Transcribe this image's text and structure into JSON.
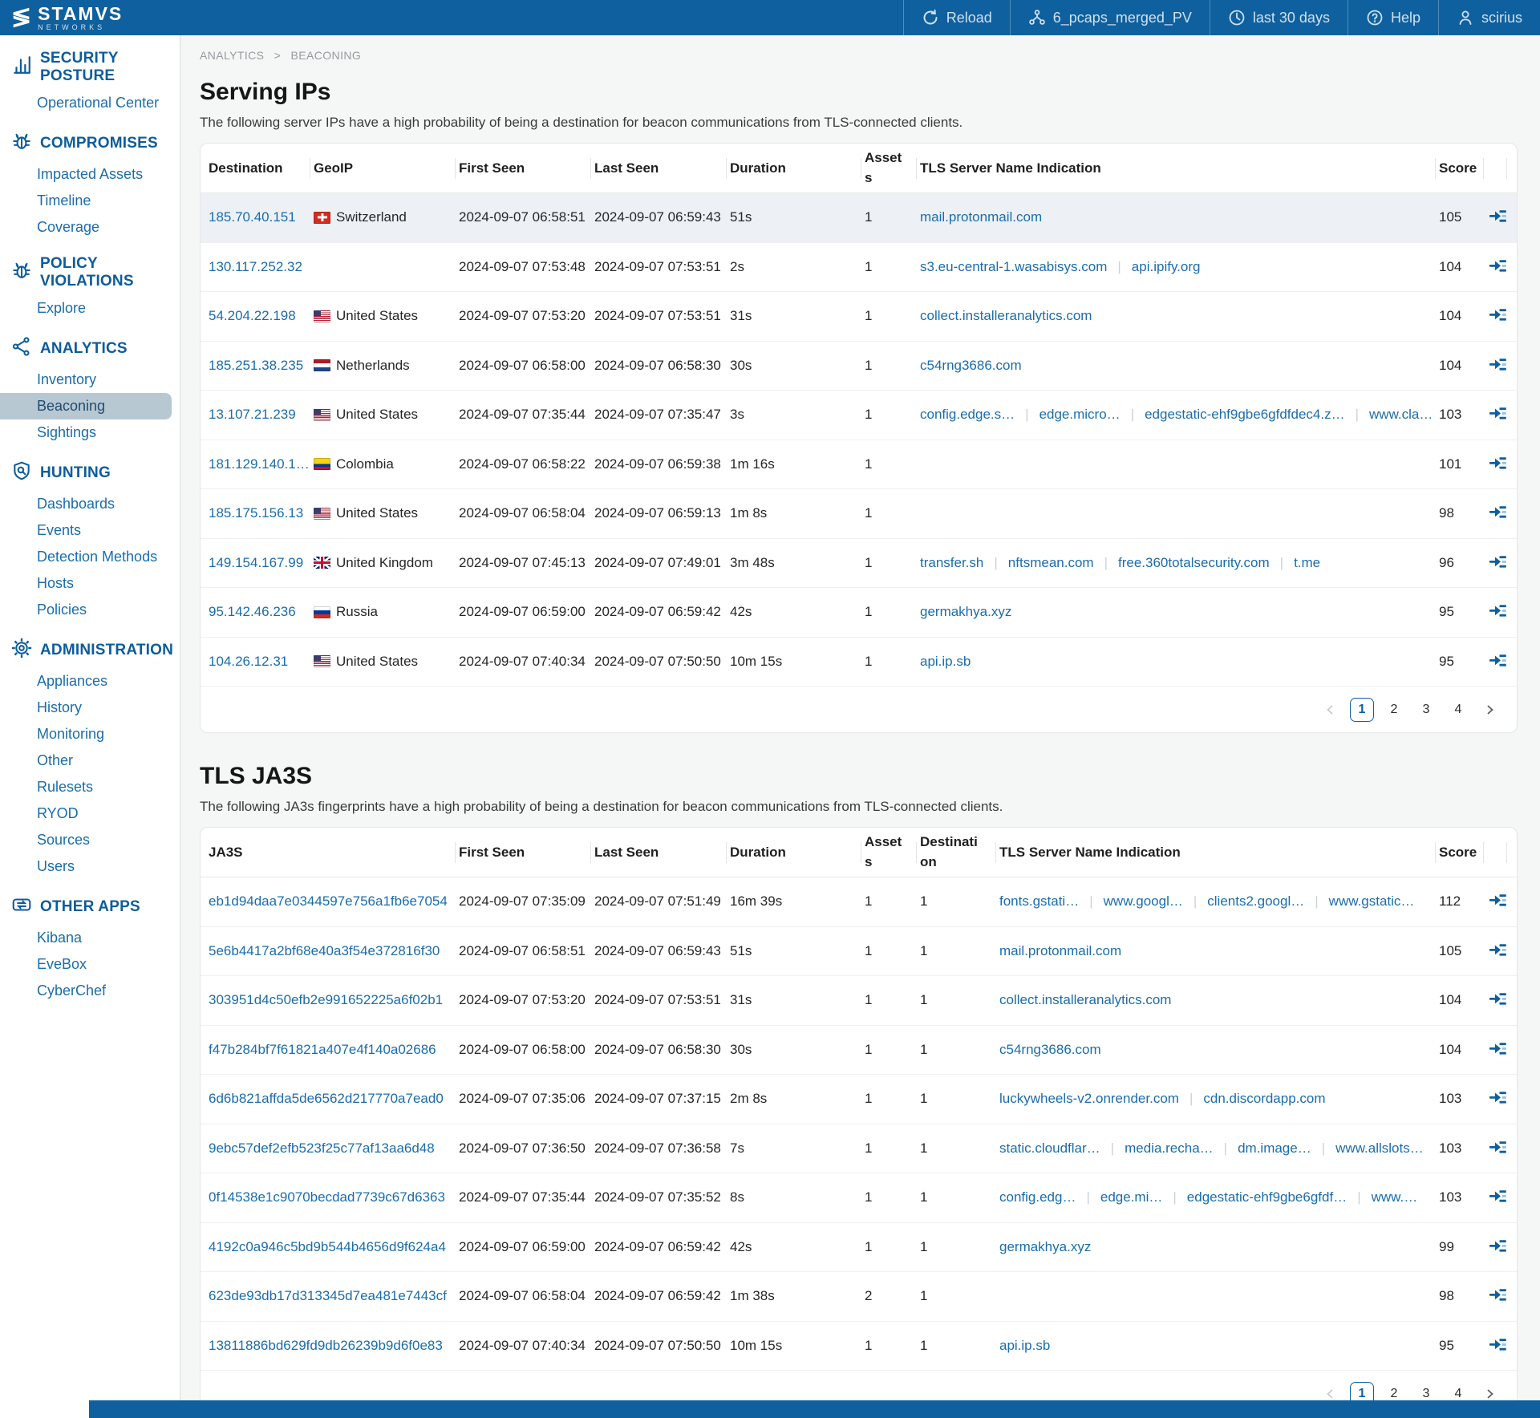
{
  "header": {
    "logo_title": "STAMVS",
    "logo_subtitle": "NETWORKS",
    "reload_label": "Reload",
    "tenant_label": "6_pcaps_merged_PV",
    "time_range_label": "last 30 days",
    "help_label": "Help",
    "user_label": "scirius"
  },
  "breadcrumb": {
    "items": [
      "ANALYTICS",
      "BEACONING"
    ],
    "separator": ">"
  },
  "sidebar": {
    "sections": [
      {
        "label": "SECURITY POSTURE",
        "icon": "bar-chart-icon",
        "items": [
          "Operational Center"
        ]
      },
      {
        "label": "COMPROMISES",
        "icon": "bug-icon",
        "items": [
          "Impacted Assets",
          "Timeline",
          "Coverage"
        ]
      },
      {
        "label": "POLICY VIOLATIONS",
        "icon": "bug-icon",
        "items": [
          "Explore"
        ]
      },
      {
        "label": "ANALYTICS",
        "icon": "share-icon",
        "items": [
          "Inventory",
          "Beaconing",
          "Sightings"
        ],
        "active_item": "Beaconing"
      },
      {
        "label": "HUNTING",
        "icon": "shield-search-icon",
        "items": [
          "Dashboards",
          "Events",
          "Detection Methods",
          "Hosts",
          "Policies"
        ]
      },
      {
        "label": "ADMINISTRATION",
        "icon": "gear-icon",
        "items": [
          "Appliances",
          "History",
          "Monitoring",
          "Other",
          "Rulesets",
          "RYOD",
          "Sources",
          "Users"
        ]
      },
      {
        "label": "OTHER APPS",
        "icon": "apps-link-icon",
        "items": [
          "Kibana",
          "EveBox",
          "CyberChef"
        ]
      }
    ]
  },
  "serving_ips": {
    "title": "Serving IPs",
    "subtitle": "The following server IPs have a high probability of being a destination for beacon communications from TLS-connected clients.",
    "columns": [
      "Destination",
      "GeoIP",
      "First Seen",
      "Last Seen",
      "Duration",
      "Assets",
      "TLS Server Name Indication",
      "Score",
      ""
    ],
    "rows": [
      {
        "destination": "185.70.40.151",
        "flag": "ch",
        "country": "Switzerland",
        "first_seen": "2024-09-07 06:58:51",
        "last_seen": "2024-09-07 06:59:43",
        "duration": "51s",
        "assets": "1",
        "sni": [
          "mail.protonmail.com"
        ],
        "score": "105",
        "highlighted": true
      },
      {
        "destination": "130.117.252.32",
        "flag": "",
        "country": "",
        "first_seen": "2024-09-07 07:53:48",
        "last_seen": "2024-09-07 07:53:51",
        "duration": "2s",
        "assets": "1",
        "sni": [
          "s3.eu-central-1.wasabisys.com",
          "api.ipify.org"
        ],
        "score": "104",
        "highlighted": false
      },
      {
        "destination": "54.204.22.198",
        "flag": "us",
        "country": "United States",
        "first_seen": "2024-09-07 07:53:20",
        "last_seen": "2024-09-07 07:53:51",
        "duration": "31s",
        "assets": "1",
        "sni": [
          "collect.installeranalytics.com"
        ],
        "score": "104",
        "highlighted": false
      },
      {
        "destination": "185.251.38.235",
        "flag": "nl",
        "country": "Netherlands",
        "first_seen": "2024-09-07 06:58:00",
        "last_seen": "2024-09-07 06:58:30",
        "duration": "30s",
        "assets": "1",
        "sni": [
          "c54rng3686.com"
        ],
        "score": "104",
        "highlighted": false
      },
      {
        "destination": "13.107.21.239",
        "flag": "us",
        "country": "United States",
        "first_seen": "2024-09-07 07:35:44",
        "last_seen": "2024-09-07 07:35:47",
        "duration": "3s",
        "assets": "1",
        "sni": [
          "config.edge.s…",
          "edge.micro…",
          "edgestatic-ehf9gbe6gfdfdec4.z…",
          "www.cla…"
        ],
        "score": "103",
        "highlighted": false
      },
      {
        "destination": "181.129.140.1…",
        "flag": "co",
        "country": "Colombia",
        "first_seen": "2024-09-07 06:58:22",
        "last_seen": "2024-09-07 06:59:38",
        "duration": "1m 16s",
        "assets": "1",
        "sni": [],
        "score": "101",
        "highlighted": false
      },
      {
        "destination": "185.175.156.13",
        "flag": "us",
        "country": "United States",
        "first_seen": "2024-09-07 06:58:04",
        "last_seen": "2024-09-07 06:59:13",
        "duration": "1m 8s",
        "assets": "1",
        "sni": [],
        "score": "98",
        "highlighted": false
      },
      {
        "destination": "149.154.167.99",
        "flag": "gb",
        "country": "United Kingdom",
        "first_seen": "2024-09-07 07:45:13",
        "last_seen": "2024-09-07 07:49:01",
        "duration": "3m 48s",
        "assets": "1",
        "sni": [
          "transfer.sh",
          "nftsmean.com",
          "free.360totalsecurity.com",
          "t.me"
        ],
        "score": "96",
        "highlighted": false
      },
      {
        "destination": "95.142.46.236",
        "flag": "ru",
        "country": "Russia",
        "first_seen": "2024-09-07 06:59:00",
        "last_seen": "2024-09-07 06:59:42",
        "duration": "42s",
        "assets": "1",
        "sni": [
          "germakhya.xyz"
        ],
        "score": "95",
        "highlighted": false
      },
      {
        "destination": "104.26.12.31",
        "flag": "us",
        "country": "United States",
        "first_seen": "2024-09-07 07:40:34",
        "last_seen": "2024-09-07 07:50:50",
        "duration": "10m 15s",
        "assets": "1",
        "sni": [
          "api.ip.sb"
        ],
        "score": "95",
        "highlighted": false
      }
    ],
    "pagination": {
      "pages": [
        "1",
        "2",
        "3",
        "4"
      ],
      "active": "1"
    }
  },
  "tls_ja3s": {
    "title": "TLS JA3S",
    "subtitle": "The following JA3s fingerprints have a high probability of being a destination for beacon communications from TLS-connected clients.",
    "columns": [
      "JA3S",
      "First Seen",
      "Last Seen",
      "Duration",
      "Assets",
      "Destination",
      "TLS Server Name Indication",
      "Score",
      ""
    ],
    "rows": [
      {
        "ja3s": "eb1d94daa7e0344597e756a1fb6e7054",
        "first_seen": "2024-09-07 07:35:09",
        "last_seen": "2024-09-07 07:51:49",
        "duration": "16m 39s",
        "assets": "1",
        "destinations": "1",
        "sni": [
          "fonts.gstati…",
          "www.googl…",
          "clients2.googl…",
          "www.gstatic…"
        ],
        "score": "112",
        "highlighted": false
      },
      {
        "ja3s": "5e6b4417a2bf68e40a3f54e372816f30",
        "first_seen": "2024-09-07 06:58:51",
        "last_seen": "2024-09-07 06:59:43",
        "duration": "51s",
        "assets": "1",
        "destinations": "1",
        "sni": [
          "mail.protonmail.com"
        ],
        "score": "105",
        "highlighted": false
      },
      {
        "ja3s": "303951d4c50efb2e991652225a6f02b1",
        "first_seen": "2024-09-07 07:53:20",
        "last_seen": "2024-09-07 07:53:51",
        "duration": "31s",
        "assets": "1",
        "destinations": "1",
        "sni": [
          "collect.installeranalytics.com"
        ],
        "score": "104",
        "highlighted": false
      },
      {
        "ja3s": "f47b284bf7f61821a407e4f140a02686",
        "first_seen": "2024-09-07 06:58:00",
        "last_seen": "2024-09-07 06:58:30",
        "duration": "30s",
        "assets": "1",
        "destinations": "1",
        "sni": [
          "c54rng3686.com"
        ],
        "score": "104",
        "highlighted": false
      },
      {
        "ja3s": "6d6b821affda5de6562d217770a7ead0",
        "first_seen": "2024-09-07 07:35:06",
        "last_seen": "2024-09-07 07:37:15",
        "duration": "2m 8s",
        "assets": "1",
        "destinations": "1",
        "sni": [
          "luckywheels-v2.onrender.com",
          "cdn.discordapp.com"
        ],
        "score": "103",
        "highlighted": false
      },
      {
        "ja3s": "9ebc57def2efb523f25c77af13aa6d48",
        "first_seen": "2024-09-07 07:36:50",
        "last_seen": "2024-09-07 07:36:58",
        "duration": "7s",
        "assets": "1",
        "destinations": "1",
        "sni": [
          "static.cloudflar…",
          "media.recha…",
          "dm.image…",
          "www.allslots…"
        ],
        "score": "103",
        "highlighted": false
      },
      {
        "ja3s": "0f14538e1c9070becdad7739c67d6363",
        "first_seen": "2024-09-07 07:35:44",
        "last_seen": "2024-09-07 07:35:52",
        "duration": "8s",
        "assets": "1",
        "destinations": "1",
        "sni": [
          "config.edg…",
          "edge.mi…",
          "edgestatic-ehf9gbe6gfdf…",
          "www.…"
        ],
        "score": "103",
        "highlighted": false
      },
      {
        "ja3s": "4192c0a946c5bd9b544b4656d9f624a4",
        "first_seen": "2024-09-07 06:59:00",
        "last_seen": "2024-09-07 06:59:42",
        "duration": "42s",
        "assets": "1",
        "destinations": "1",
        "sni": [
          "germakhya.xyz"
        ],
        "score": "99",
        "highlighted": false
      },
      {
        "ja3s": "623de93db17d313345d7ea481e7443cf",
        "first_seen": "2024-09-07 06:58:04",
        "last_seen": "2024-09-07 06:59:42",
        "duration": "1m 38s",
        "assets": "2",
        "destinations": "1",
        "sni": [],
        "score": "98",
        "highlighted": false
      },
      {
        "ja3s": "13811886bd629fd9db26239b9d6f0e83",
        "first_seen": "2024-09-07 07:40:34",
        "last_seen": "2024-09-07 07:50:50",
        "duration": "10m 15s",
        "assets": "1",
        "destinations": "1",
        "sni": [
          "api.ip.sb"
        ],
        "score": "95",
        "highlighted": false
      }
    ],
    "pagination": {
      "pages": [
        "1",
        "2",
        "3",
        "4"
      ],
      "active": "1"
    }
  },
  "colors": {
    "brand_blue": "#0f609e",
    "link_blue": "#1a6dab",
    "active_item_bg": "#b7c8d3",
    "highlight_row_bg": "#edf1f6"
  }
}
